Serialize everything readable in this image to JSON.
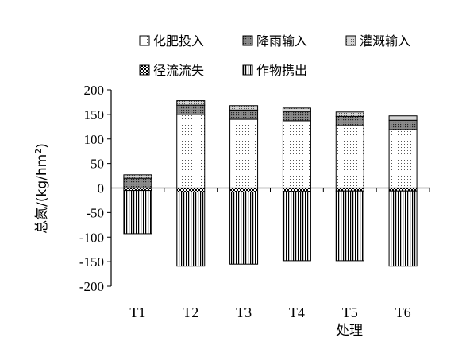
{
  "chart_data": {
    "type": "bar",
    "stacked": true,
    "categories": [
      "T1",
      "T2",
      "T3",
      "T4",
      "T5",
      "T6"
    ],
    "series": [
      {
        "name": "化肥投入",
        "pattern": "dots",
        "values": [
          0,
          150,
          140,
          137,
          127,
          119
        ]
      },
      {
        "name": "降雨输入",
        "pattern": "dark-dots",
        "values": [
          20,
          19,
          19,
          19,
          19,
          19
        ]
      },
      {
        "name": "灌溉输入",
        "pattern": "fine-dots",
        "values": [
          7,
          9,
          9,
          7,
          9,
          9
        ]
      },
      {
        "name": "径流流失",
        "pattern": "checker",
        "values": [
          -5,
          -8,
          -8,
          -7,
          -6,
          -6
        ]
      },
      {
        "name": "作物携出",
        "pattern": "vertical-lines",
        "values": [
          -88,
          -151,
          -147,
          -141,
          -142,
          -153
        ]
      }
    ],
    "ylabel": "总氮/(kg/hm²)",
    "ylabel_parts": {
      "text": "总氮/(kg/hm",
      "sup": "2",
      "close": ")"
    },
    "xlabel": "处理",
    "ylim": [
      -200,
      200
    ],
    "yticks": [
      200,
      150,
      100,
      50,
      0,
      -50,
      -100,
      -150,
      -200
    ],
    "ytick_labels": [
      "200",
      "150",
      "100",
      "50",
      "0",
      "-50",
      "-100",
      "-150",
      "-200"
    ],
    "grid": false,
    "legend_position": "top"
  }
}
